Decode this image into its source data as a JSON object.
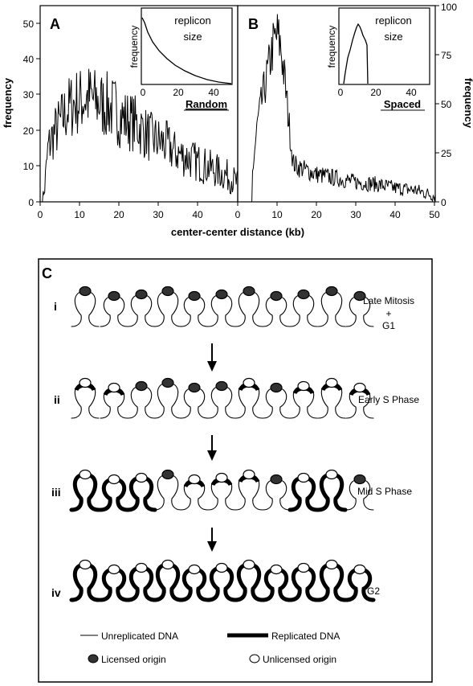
{
  "panel_a": {
    "letter": "A",
    "ylabel": "frequency",
    "yticks": [
      "0",
      "10",
      "20",
      "30",
      "40",
      "50"
    ],
    "xticks": [
      "0",
      "10",
      "20",
      "30",
      "40"
    ],
    "inset": {
      "ylabel": "frequency",
      "title_line1": "replicon",
      "title_line2": "size",
      "xticks": [
        "0",
        "20",
        "40"
      ],
      "caption": "Random"
    }
  },
  "panel_b": {
    "letter": "B",
    "ylabel": "frequency",
    "yticks": [
      "0",
      "25",
      "50",
      "75",
      "100"
    ],
    "xticks": [
      "0",
      "10",
      "20",
      "30",
      "40",
      "50"
    ],
    "inset": {
      "ylabel": "frequency",
      "title_line1": "replicon",
      "title_line2": "size",
      "xticks": [
        "0",
        "20",
        "40"
      ],
      "caption": "Spaced"
    }
  },
  "xlabel": "center-center distance (kb)",
  "chart_data": [
    {
      "type": "line",
      "panel": "A",
      "xlabel": "center-center distance (kb)",
      "ylabel": "frequency",
      "xlim": [
        0,
        50
      ],
      "ylim": [
        0,
        55
      ],
      "x": [
        0,
        1,
        2,
        3,
        4,
        5,
        6,
        7,
        8,
        9,
        10,
        11,
        12,
        13,
        14,
        15,
        16,
        17,
        18,
        19,
        20,
        22,
        24,
        26,
        28,
        30,
        32,
        34,
        36,
        38,
        40,
        42,
        44,
        46,
        48,
        50
      ],
      "y": [
        0,
        2,
        15,
        18,
        20,
        22,
        24,
        26,
        27,
        28,
        28,
        29,
        29,
        29,
        28,
        28,
        27,
        27,
        26,
        26,
        24,
        23,
        22,
        20,
        18,
        17,
        16,
        14,
        13,
        12,
        11,
        10,
        9,
        8,
        7,
        5
      ]
    },
    {
      "type": "line",
      "panel": "B",
      "xlabel": "center-center distance (kb)",
      "ylabel": "frequency",
      "xlim": [
        0,
        50
      ],
      "ylim": [
        0,
        100
      ],
      "x": [
        3,
        4,
        5,
        6,
        7,
        8,
        9,
        10,
        11,
        12,
        13,
        14,
        15,
        20,
        25,
        30,
        35,
        40,
        45,
        50
      ],
      "y": [
        0,
        20,
        40,
        50,
        60,
        70,
        80,
        85,
        78,
        60,
        40,
        20,
        18,
        14,
        12,
        10,
        9,
        7,
        6,
        3
      ]
    }
  ],
  "panel_c": {
    "letter": "C",
    "rows": [
      {
        "numeral": "i",
        "label_line1": "Late Mitosis",
        "label_line2": "+",
        "label_line3": "G1"
      },
      {
        "numeral": "ii",
        "label_line1": "Early S Phase",
        "label_line2": "",
        "label_line3": ""
      },
      {
        "numeral": "iii",
        "label_line1": "Mid S Phase",
        "label_line2": "",
        "label_line3": ""
      },
      {
        "numeral": "iv",
        "label_line1": "G2",
        "label_line2": "",
        "label_line3": ""
      }
    ],
    "legend": {
      "unreplicated": "Unreplicated DNA",
      "replicated": "Replicated DNA",
      "licensed": "Licensed origin",
      "unlicensed": "Unlicensed origin"
    }
  }
}
